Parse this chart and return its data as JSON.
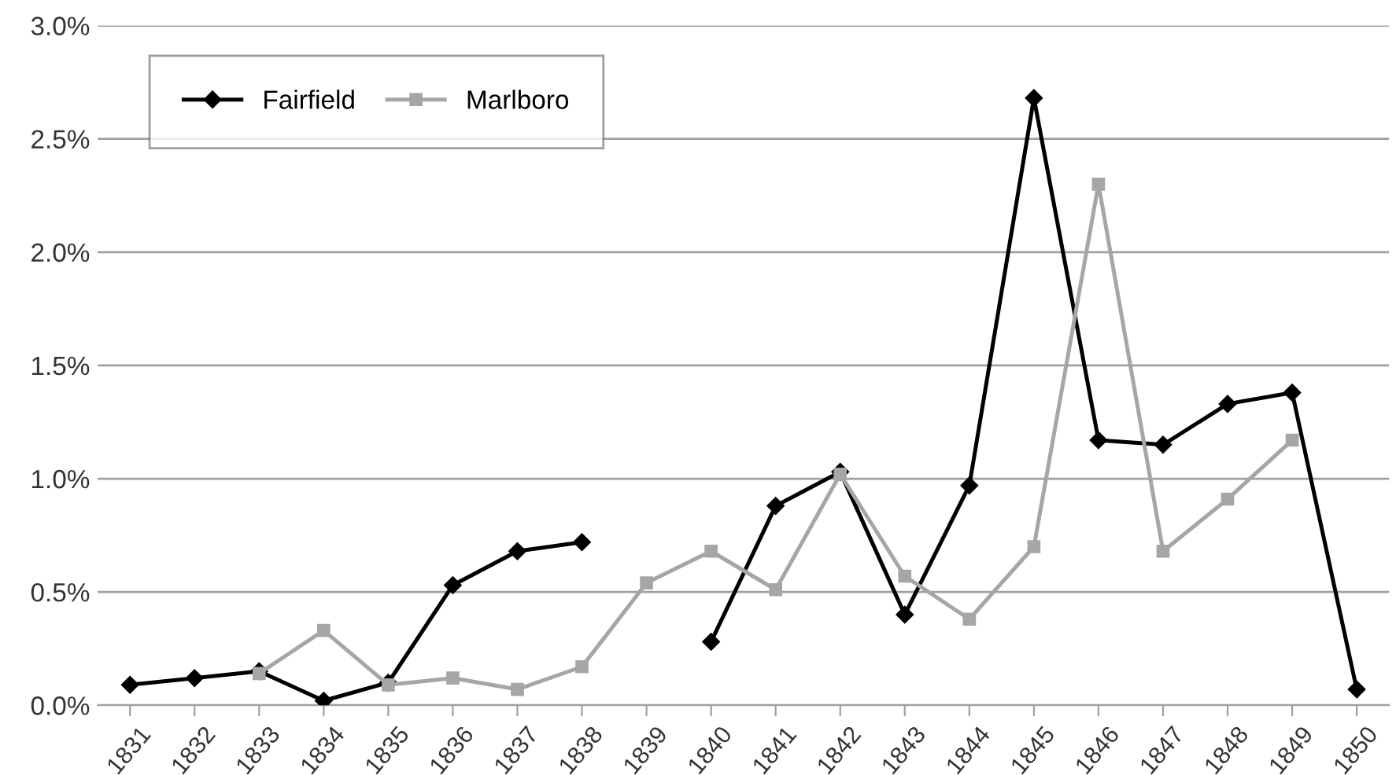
{
  "chart_data": {
    "type": "line",
    "categories": [
      "1831",
      "1832",
      "1833",
      "1834",
      "1835",
      "1836",
      "1837",
      "1838",
      "1839",
      "1840",
      "1841",
      "1842",
      "1843",
      "1844",
      "1845",
      "1846",
      "1847",
      "1848",
      "1849",
      "1850"
    ],
    "series": [
      {
        "name": "Fairfield",
        "color": "#000000",
        "marker": "diamond",
        "values": [
          0.09,
          0.12,
          0.15,
          0.02,
          0.1,
          0.53,
          0.68,
          0.72,
          null,
          0.28,
          0.88,
          1.03,
          0.4,
          0.97,
          2.68,
          1.17,
          1.15,
          1.33,
          1.38,
          0.07
        ]
      },
      {
        "name": "Marlboro",
        "color": "#a6a6a6",
        "marker": "square",
        "values": [
          null,
          null,
          0.14,
          0.33,
          0.09,
          0.12,
          0.07,
          0.17,
          0.54,
          0.68,
          0.51,
          1.02,
          0.57,
          0.38,
          0.7,
          2.3,
          0.68,
          0.91,
          1.17,
          null
        ]
      }
    ],
    "ylim": [
      0,
      3
    ],
    "yticks": [
      {
        "value": 0,
        "label": "0.0%"
      },
      {
        "value": 0.5,
        "label": "0.5%"
      },
      {
        "value": 1,
        "label": "1.0%"
      },
      {
        "value": 1.5,
        "label": "1.5%"
      },
      {
        "value": 2,
        "label": "2.0%"
      },
      {
        "value": 2.5,
        "label": "2.5%"
      },
      {
        "value": 3,
        "label": "3.0%"
      }
    ],
    "grid": "y",
    "legend": "top left"
  }
}
